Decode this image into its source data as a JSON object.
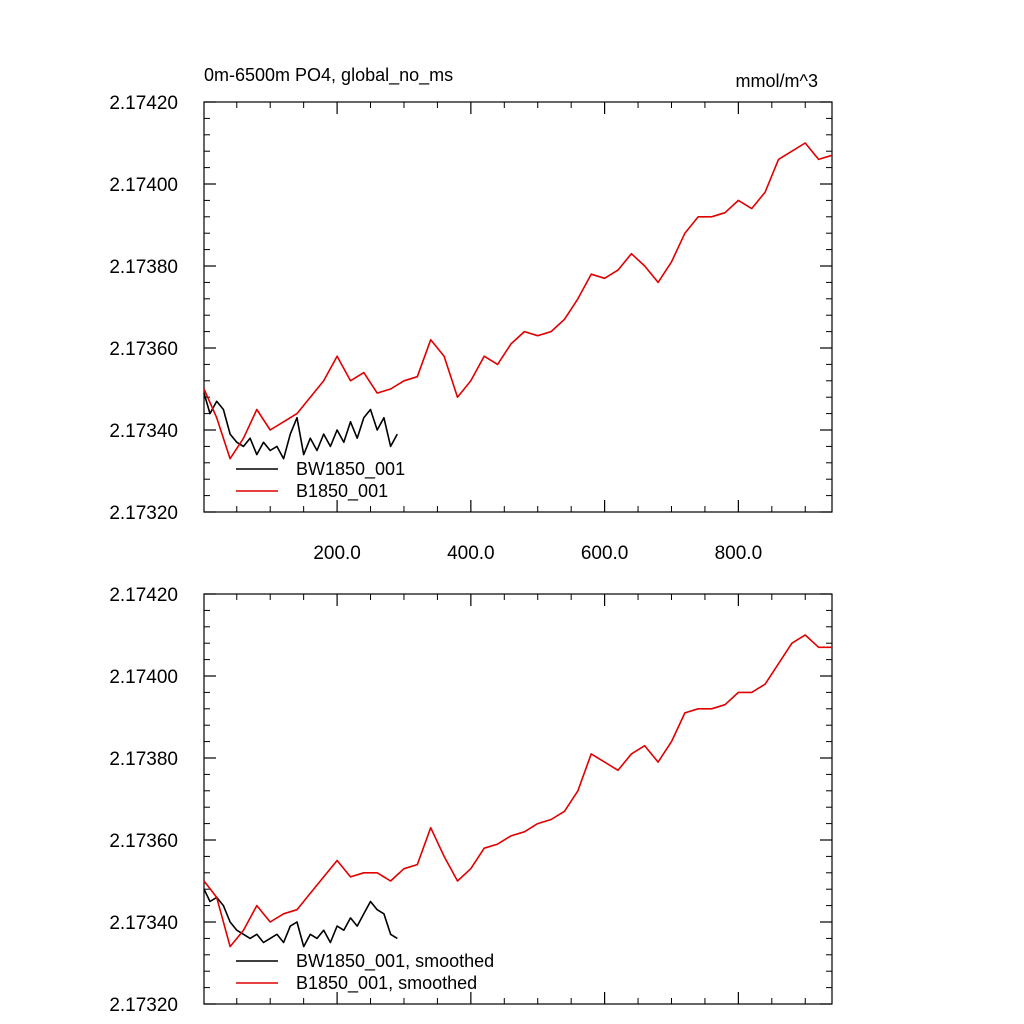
{
  "chart_data": [
    {
      "type": "line",
      "title": "0m-6500m PO4, global_no_ms",
      "units": "mmol/m^3",
      "xlim": [
        1,
        940
      ],
      "ylim": [
        2.1732,
        2.1742
      ],
      "x_ticks": [
        200,
        400,
        600,
        800
      ],
      "x_tick_labels": [
        "200.0",
        "400.0",
        "600.0",
        "800.0"
      ],
      "y_ticks": [
        2.1732,
        2.1734,
        2.1736,
        2.1738,
        2.174,
        2.1742
      ],
      "y_tick_labels": [
        "2.17320",
        "2.17340",
        "2.17360",
        "2.17380",
        "2.17400",
        "2.17420"
      ],
      "legend_position": "bottom-left",
      "series": [
        {
          "name": "BW1850_001",
          "color": "#000000",
          "x": [
            1,
            10,
            20,
            30,
            40,
            50,
            60,
            70,
            80,
            90,
            100,
            110,
            120,
            130,
            140,
            150,
            160,
            170,
            180,
            190,
            200,
            210,
            220,
            230,
            240,
            250,
            260,
            270,
            280,
            290
          ],
          "y": [
            2.17349,
            2.17344,
            2.17347,
            2.17345,
            2.17339,
            2.17337,
            2.17336,
            2.17338,
            2.17334,
            2.17337,
            2.17335,
            2.17336,
            2.17333,
            2.17339,
            2.17343,
            2.17334,
            2.17338,
            2.17335,
            2.17339,
            2.17336,
            2.1734,
            2.17337,
            2.17342,
            2.17338,
            2.17343,
            2.17345,
            2.1734,
            2.17343,
            2.17336,
            2.17339
          ]
        },
        {
          "name": "B1850_001",
          "color": "#e00000",
          "x": [
            1,
            20,
            40,
            60,
            80,
            100,
            120,
            140,
            160,
            180,
            200,
            220,
            240,
            260,
            280,
            300,
            320,
            340,
            360,
            380,
            400,
            420,
            440,
            460,
            480,
            500,
            520,
            540,
            560,
            580,
            600,
            620,
            640,
            660,
            680,
            700,
            720,
            740,
            760,
            780,
            800,
            820,
            840,
            860,
            880,
            900,
            920,
            940
          ],
          "y": [
            2.1735,
            2.17343,
            2.17333,
            2.17338,
            2.17345,
            2.1734,
            2.17342,
            2.17344,
            2.17348,
            2.17352,
            2.17358,
            2.17352,
            2.17354,
            2.17349,
            2.1735,
            2.17352,
            2.17353,
            2.17362,
            2.17358,
            2.17348,
            2.17352,
            2.17358,
            2.17356,
            2.17361,
            2.17364,
            2.17363,
            2.17364,
            2.17367,
            2.17372,
            2.17378,
            2.17377,
            2.17379,
            2.17383,
            2.1738,
            2.17376,
            2.17381,
            2.17388,
            2.17392,
            2.17392,
            2.17393,
            2.17396,
            2.17394,
            2.17398,
            2.17406,
            2.17408,
            2.1741,
            2.17406,
            2.17407
          ]
        }
      ]
    },
    {
      "type": "line",
      "title": "",
      "xlim": [
        1,
        940
      ],
      "ylim": [
        2.1732,
        2.1742
      ],
      "y_ticks": [
        2.1732,
        2.1734,
        2.1736,
        2.1738,
        2.174,
        2.1742
      ],
      "y_tick_labels": [
        "2.17320",
        "2.17340",
        "2.17360",
        "2.17380",
        "2.17400",
        "2.17420"
      ],
      "legend_position": "bottom-left",
      "series": [
        {
          "name": "BW1850_001, smoothed",
          "color": "#000000",
          "x": [
            1,
            10,
            20,
            30,
            40,
            50,
            60,
            70,
            80,
            90,
            100,
            110,
            120,
            130,
            140,
            150,
            160,
            170,
            180,
            190,
            200,
            210,
            220,
            230,
            240,
            250,
            260,
            270,
            280,
            290
          ],
          "y": [
            2.17348,
            2.17345,
            2.17346,
            2.17344,
            2.1734,
            2.17338,
            2.17337,
            2.17336,
            2.17337,
            2.17335,
            2.17336,
            2.17337,
            2.17335,
            2.17339,
            2.1734,
            2.17334,
            2.17337,
            2.17336,
            2.17338,
            2.17335,
            2.17339,
            2.17338,
            2.17341,
            2.17339,
            2.17342,
            2.17345,
            2.17343,
            2.17342,
            2.17337,
            2.17336
          ]
        },
        {
          "name": "B1850_001, smoothed",
          "color": "#e00000",
          "x": [
            1,
            20,
            40,
            60,
            80,
            100,
            120,
            140,
            160,
            180,
            200,
            220,
            240,
            260,
            280,
            300,
            320,
            340,
            360,
            380,
            400,
            420,
            440,
            460,
            480,
            500,
            520,
            540,
            560,
            580,
            600,
            620,
            640,
            660,
            680,
            700,
            720,
            740,
            760,
            780,
            800,
            820,
            840,
            860,
            880,
            900,
            920,
            940
          ],
          "y": [
            2.1735,
            2.17346,
            2.17334,
            2.17338,
            2.17344,
            2.1734,
            2.17342,
            2.17343,
            2.17347,
            2.17351,
            2.17355,
            2.17351,
            2.17352,
            2.17352,
            2.1735,
            2.17353,
            2.17354,
            2.17363,
            2.17356,
            2.1735,
            2.17353,
            2.17358,
            2.17359,
            2.17361,
            2.17362,
            2.17364,
            2.17365,
            2.17367,
            2.17372,
            2.17381,
            2.17379,
            2.17377,
            2.17381,
            2.17383,
            2.17379,
            2.17384,
            2.17391,
            2.17392,
            2.17392,
            2.17393,
            2.17396,
            2.17396,
            2.17398,
            2.17403,
            2.17408,
            2.1741,
            2.17407,
            2.17407
          ]
        }
      ]
    }
  ]
}
